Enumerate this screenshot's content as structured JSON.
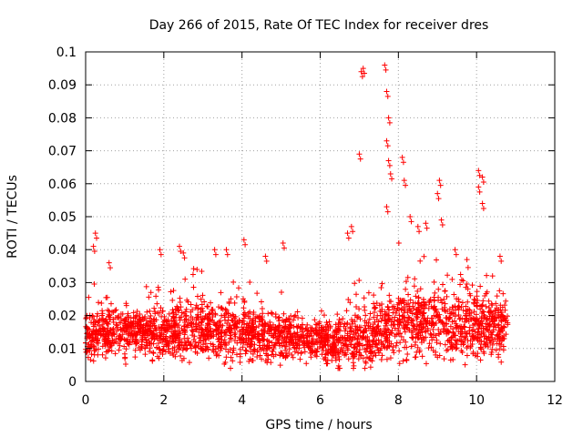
{
  "chart_data": {
    "type": "scatter",
    "title": "Day 266 of 2015, Rate Of TEC Index for receiver dres",
    "xlabel": "GPS time / hours",
    "ylabel": "ROTI / TECUs",
    "xlim": [
      0,
      12
    ],
    "ylim": [
      0,
      0.1
    ],
    "xticks": [
      0,
      2,
      4,
      6,
      8,
      10,
      12
    ],
    "xtick_labels": [
      "0",
      "2",
      "4",
      "6",
      "8",
      "10",
      "12"
    ],
    "yticks": [
      0,
      0.01,
      0.02,
      0.03,
      0.04,
      0.05,
      0.06,
      0.07,
      0.08,
      0.09,
      0.1
    ],
    "ytick_labels": [
      "0",
      "0.01",
      "0.02",
      "0.03",
      "0.04",
      "0.05",
      "0.06",
      "0.07",
      "0.08",
      "0.09",
      "0.1"
    ],
    "grid": true,
    "marker": "+",
    "series_color": "#ff0000",
    "time_span_hours": [
      0,
      10.8
    ],
    "envelope": {
      "x": [
        0,
        0.5,
        1.0,
        1.5,
        2.0,
        2.5,
        3.0,
        3.5,
        4.0,
        4.5,
        5.0,
        5.5,
        6.0,
        6.5,
        6.9,
        7.2,
        7.6,
        8.0,
        8.5,
        9.0,
        9.5,
        10.0,
        10.4,
        10.8
      ],
      "median": [
        0.014,
        0.014,
        0.015,
        0.015,
        0.015,
        0.015,
        0.016,
        0.016,
        0.015,
        0.014,
        0.014,
        0.013,
        0.012,
        0.012,
        0.013,
        0.013,
        0.016,
        0.017,
        0.018,
        0.018,
        0.017,
        0.017,
        0.016,
        0.015
      ],
      "spread": [
        0.005,
        0.005,
        0.005,
        0.005,
        0.006,
        0.006,
        0.006,
        0.006,
        0.006,
        0.005,
        0.005,
        0.004,
        0.004,
        0.005,
        0.006,
        0.006,
        0.007,
        0.008,
        0.008,
        0.008,
        0.007,
        0.007,
        0.006,
        0.006
      ]
    },
    "peaks": [
      {
        "x": 0.25,
        "y": 0.045
      },
      {
        "x": 0.2,
        "y": 0.041
      },
      {
        "x": 0.6,
        "y": 0.036
      },
      {
        "x": 1.9,
        "y": 0.04
      },
      {
        "x": 2.4,
        "y": 0.041
      },
      {
        "x": 2.5,
        "y": 0.039
      },
      {
        "x": 3.3,
        "y": 0.04
      },
      {
        "x": 3.6,
        "y": 0.04
      },
      {
        "x": 4.05,
        "y": 0.043
      },
      {
        "x": 4.6,
        "y": 0.038
      },
      {
        "x": 5.05,
        "y": 0.042
      },
      {
        "x": 6.7,
        "y": 0.045
      },
      {
        "x": 6.8,
        "y": 0.047
      },
      {
        "x": 7.0,
        "y": 0.069
      },
      {
        "x": 7.05,
        "y": 0.094
      },
      {
        "x": 7.1,
        "y": 0.095
      },
      {
        "x": 7.65,
        "y": 0.096
      },
      {
        "x": 7.7,
        "y": 0.088
      },
      {
        "x": 7.75,
        "y": 0.08
      },
      {
        "x": 7.7,
        "y": 0.073
      },
      {
        "x": 7.75,
        "y": 0.067
      },
      {
        "x": 7.8,
        "y": 0.063
      },
      {
        "x": 7.7,
        "y": 0.053
      },
      {
        "x": 8.1,
        "y": 0.068
      },
      {
        "x": 8.15,
        "y": 0.061
      },
      {
        "x": 8.3,
        "y": 0.05
      },
      {
        "x": 8.5,
        "y": 0.047
      },
      {
        "x": 8.7,
        "y": 0.048
      },
      {
        "x": 9.05,
        "y": 0.061
      },
      {
        "x": 9.0,
        "y": 0.057
      },
      {
        "x": 9.1,
        "y": 0.049
      },
      {
        "x": 9.45,
        "y": 0.04
      },
      {
        "x": 10.05,
        "y": 0.064
      },
      {
        "x": 10.15,
        "y": 0.062
      },
      {
        "x": 10.05,
        "y": 0.059
      },
      {
        "x": 10.15,
        "y": 0.054
      },
      {
        "x": 10.6,
        "y": 0.038
      }
    ]
  }
}
